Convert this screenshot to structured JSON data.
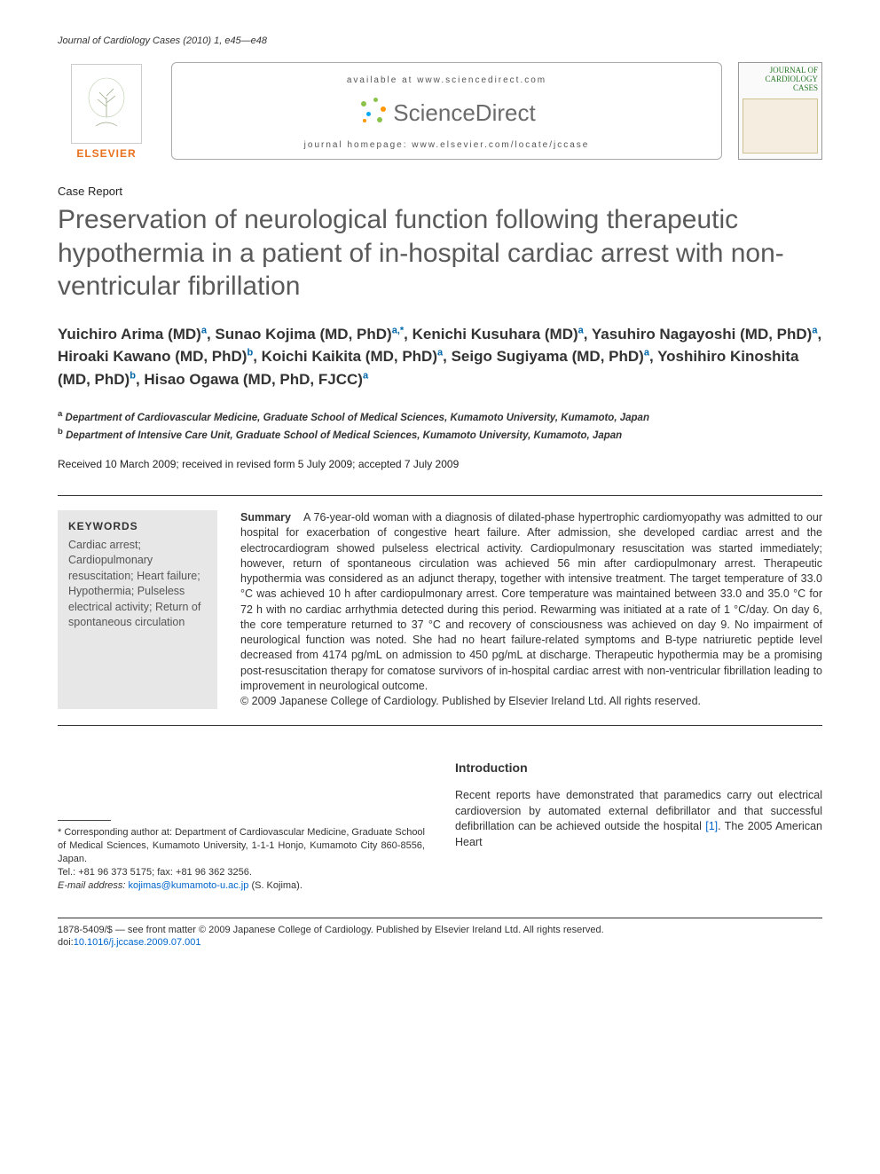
{
  "running_head": "Journal of Cardiology Cases (2010) 1, e45—e48",
  "masthead": {
    "publisher": "ELSEVIER",
    "available_at": "available at www.sciencedirect.com",
    "sd_brand": "ScienceDirect",
    "homepage": "journal homepage: www.elsevier.com/locate/jccase",
    "cover_title": "JOURNAL OF CARDIOLOGY CASES"
  },
  "article_type": "Case Report",
  "title": "Preservation of neurological function following therapeutic hypothermia in a patient of in-hospital cardiac arrest with non-ventricular fibrillation",
  "authors_html": "Yuichiro Arima (MD)<sup>a</sup>, Sunao Kojima (MD, PhD)<sup>a,*</sup>, Kenichi Kusuhara (MD)<sup>a</sup>, Yasuhiro Nagayoshi (MD, PhD)<sup>a</sup>, Hiroaki Kawano (MD, PhD)<sup>b</sup>, Koichi Kaikita (MD, PhD)<sup>a</sup>, Seigo Sugiyama (MD, PhD)<sup>a</sup>, Yoshihiro Kinoshita (MD, PhD)<sup>b</sup>, Hisao Ogawa (MD, PhD, FJCC)<sup>a</sup>",
  "affiliations": {
    "a": "Department of Cardiovascular Medicine, Graduate School of Medical Sciences, Kumamoto University, Kumamoto, Japan",
    "b": "Department of Intensive Care Unit, Graduate School of Medical Sciences, Kumamoto University, Kumamoto, Japan"
  },
  "history": "Received 10 March 2009; received in revised form 5 July 2009; accepted 7 July 2009",
  "keywords_head": "KEYWORDS",
  "keywords": "Cardiac arrest; Cardiopulmonary resuscitation; Heart failure; Hypothermia; Pulseless electrical activity; Return of spontaneous circulation",
  "summary_label": "Summary",
  "summary": "A 76-year-old woman with a diagnosis of dilated-phase hypertrophic cardiomyopathy was admitted to our hospital for exacerbation of congestive heart failure. After admission, she developed cardiac arrest and the electrocardiogram showed pulseless electrical activity. Cardiopulmonary resuscitation was started immediately; however, return of spontaneous circulation was achieved 56 min after cardiopulmonary arrest. Therapeutic hypothermia was considered as an adjunct therapy, together with intensive treatment. The target temperature of 33.0 °C was achieved 10 h after cardiopulmonary arrest. Core temperature was maintained between 33.0 and 35.0 °C for 72 h with no cardiac arrhythmia detected during this period. Rewarming was initiated at a rate of 1 °C/day. On day 6, the core temperature returned to 37 °C and recovery of consciousness was achieved on day 9. No impairment of neurological function was noted. She had no heart failure-related symptoms and B-type natriuretic peptide level decreased from 4174 pg/mL on admission to 450 pg/mL at discharge. Therapeutic hypothermia may be a promising post-resuscitation therapy for comatose survivors of in-hospital cardiac arrest with non-ventricular fibrillation leading to improvement in neurological outcome.",
  "copyright_abs": "© 2009 Japanese College of Cardiology. Published by Elsevier Ireland Ltd. All rights reserved.",
  "corresponding": {
    "line1": "* Corresponding author at: Department of Cardiovascular Medicine, Graduate School of Medical Sciences, Kumamoto University, 1-1-1 Honjo, Kumamoto City 860-8556, Japan.",
    "tel": "Tel.: +81 96 373 5175; fax: +81 96 362 3256.",
    "email_label": "E-mail address:",
    "email": "kojimas@kumamoto-u.ac.jp",
    "email_who": "(S. Kojima)."
  },
  "intro_head": "Introduction",
  "intro_text_pre": "Recent reports have demonstrated that paramedics carry out electrical cardioversion by automated external defibrillator and that successful defibrillation can be achieved outside the hospital ",
  "intro_ref": "[1]",
  "intro_text_post": ". The 2005 American Heart",
  "footer": {
    "issn_line": "1878-5409/$ — see front matter © 2009 Japanese College of Cardiology. Published by Elsevier Ireland Ltd. All rights reserved.",
    "doi_label": "doi:",
    "doi": "10.1016/j.jccase.2009.07.001"
  },
  "colors": {
    "elsevier_orange": "#e9711c",
    "title_grey": "#5a5a5a",
    "link_blue": "#0066cc",
    "kw_bg": "#e7e7e7",
    "sd_green": "#8bc34a",
    "sd_orange": "#ff9800",
    "sd_blue": "#03a9f4"
  }
}
